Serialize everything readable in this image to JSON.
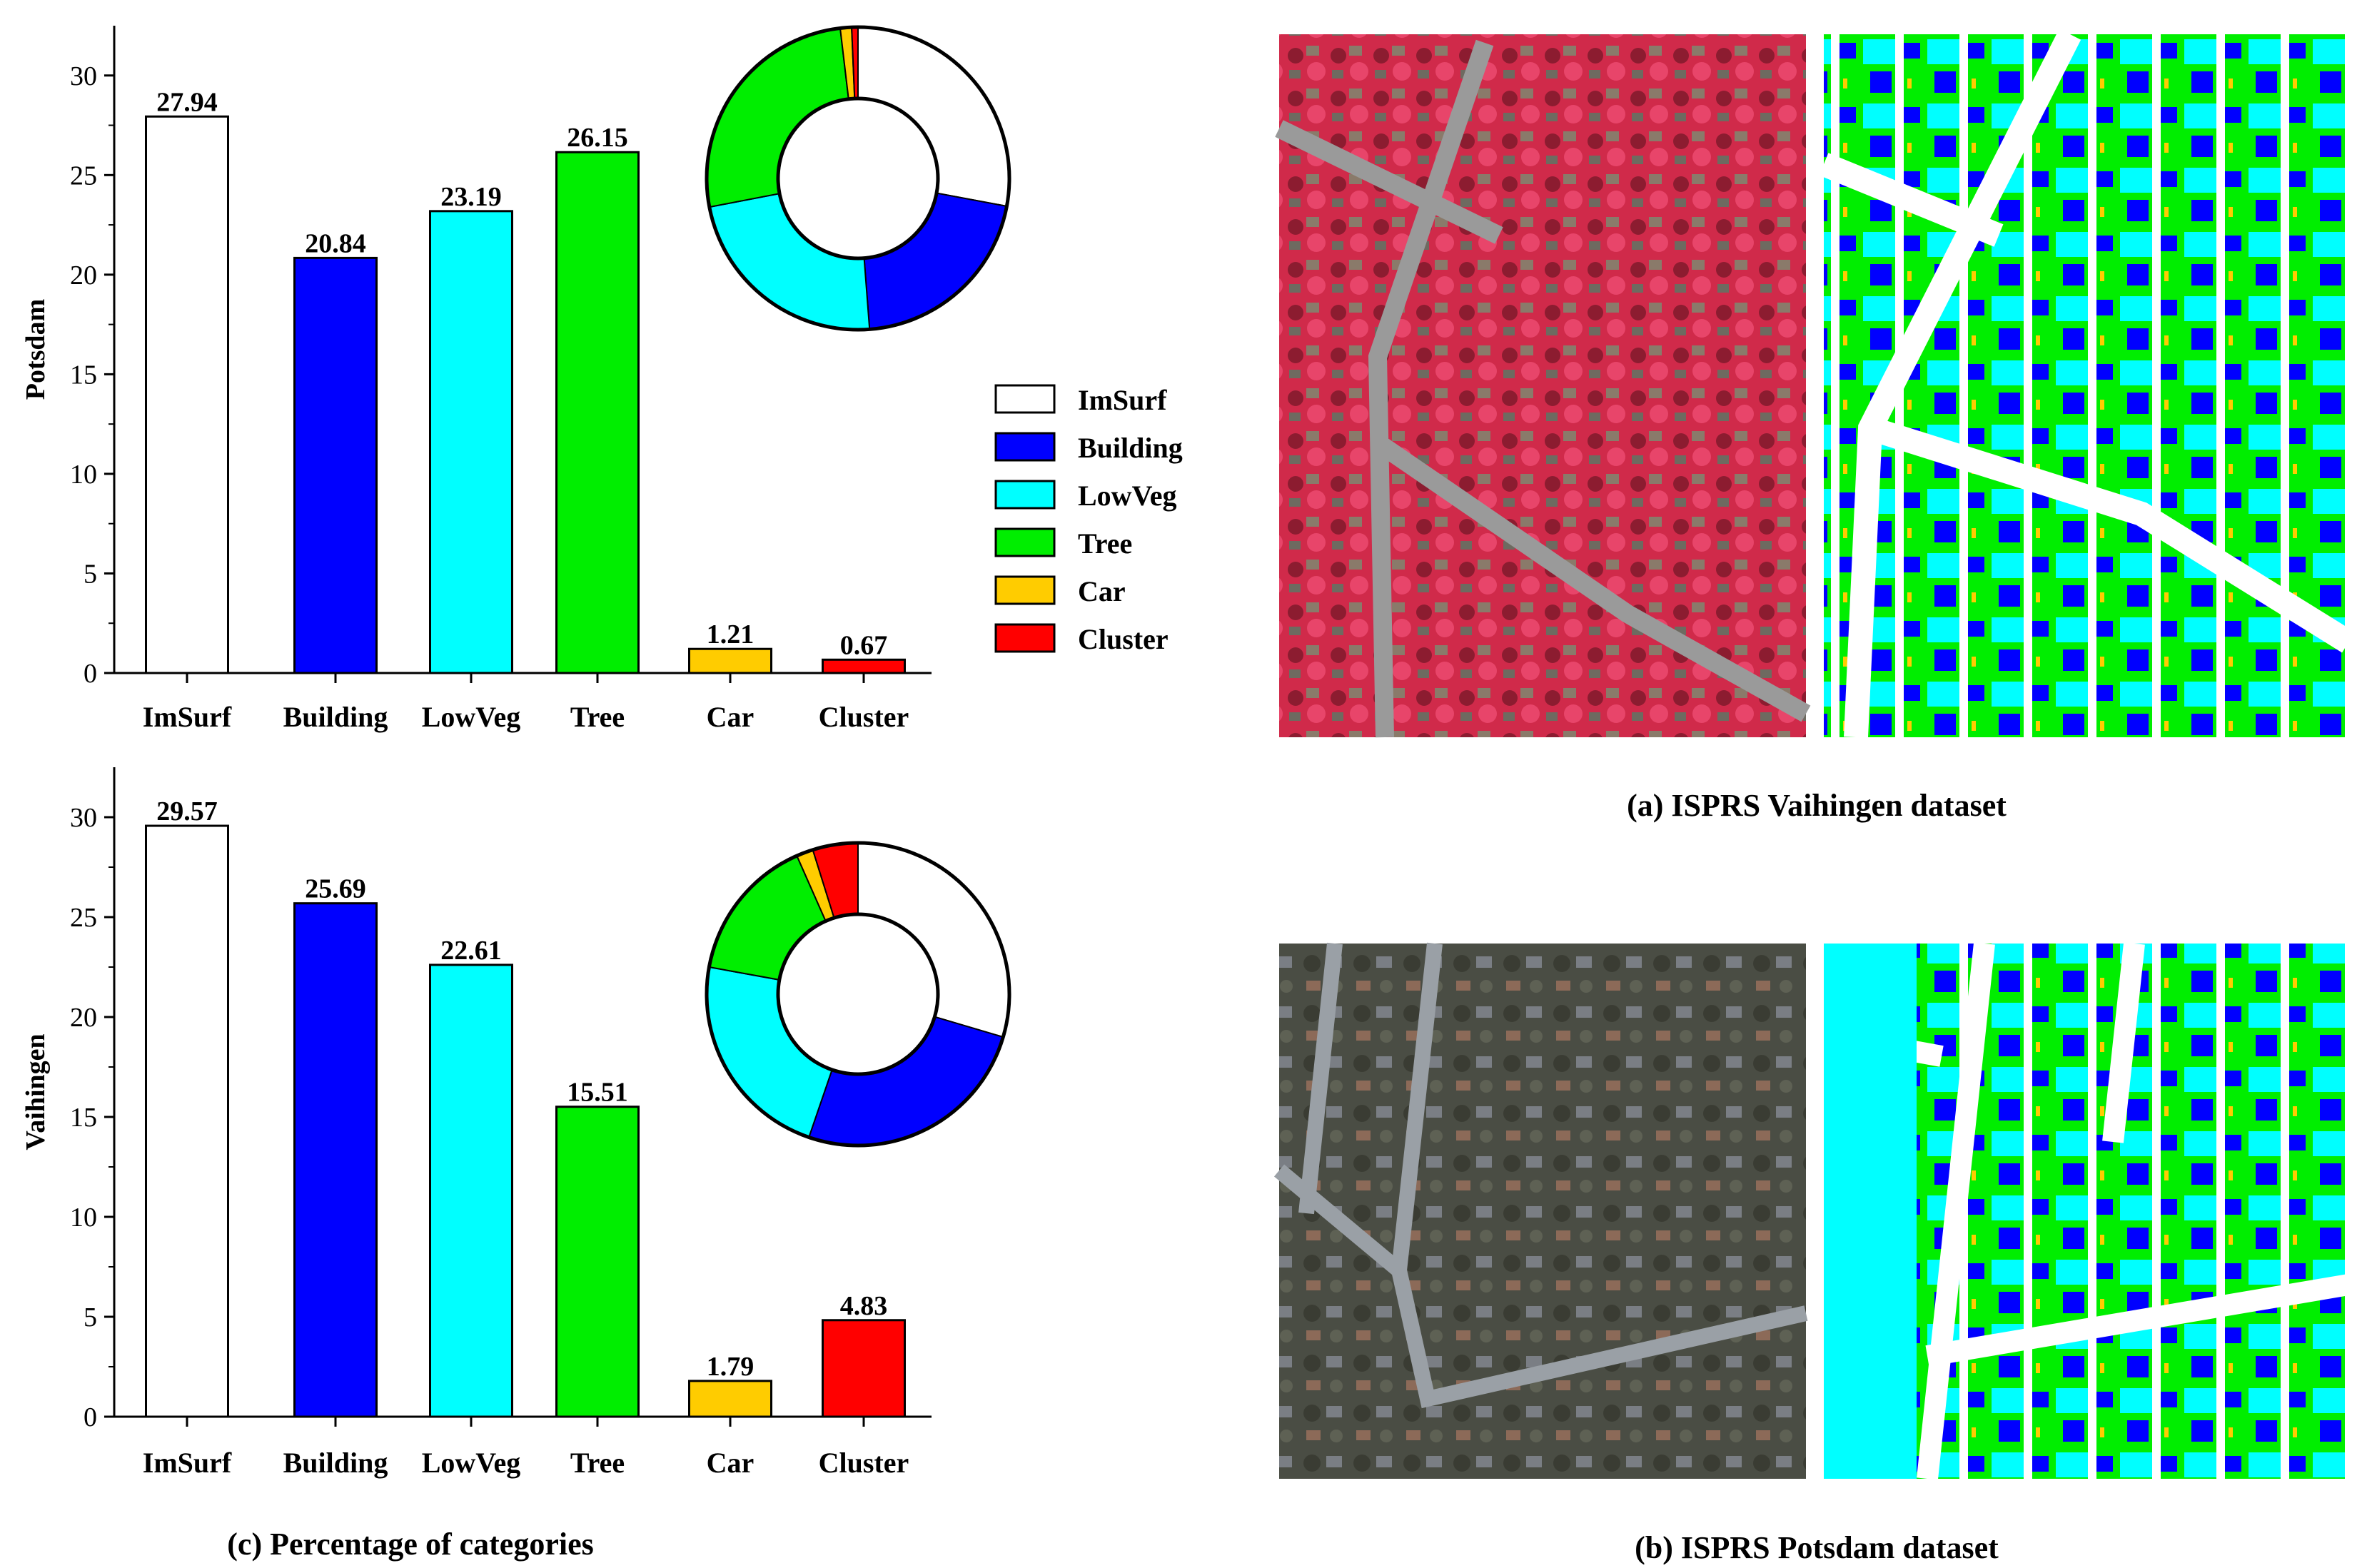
{
  "colors": {
    "ImSurf": "#ffffff",
    "Building": "#0000ff",
    "LowVeg": "#00ffff",
    "Tree": "#00ee00",
    "Car": "#ffcc00",
    "Cluster": "#ff0000"
  },
  "legend": [
    "ImSurf",
    "Building",
    "LowVeg",
    "Tree",
    "Car",
    "Cluster"
  ],
  "captions": {
    "vaihingen": "(a) ISPRS Vaihingen dataset",
    "potsdam": "(b) ISPRS Potsdam dataset",
    "percentage": "(c) Percentage of categories"
  },
  "chart_data": [
    {
      "type": "bar",
      "title": "",
      "xlabel": "",
      "ylabel": "Potsdam",
      "categories": [
        "ImSurf",
        "Building",
        "LowVeg",
        "Tree",
        "Car",
        "Cluster"
      ],
      "values": [
        27.94,
        20.84,
        23.19,
        26.15,
        1.21,
        0.67
      ],
      "value_labels": [
        "27.94",
        "20.84",
        "23.19",
        "26.15",
        "1.21",
        "0.67"
      ],
      "yticks": [
        0,
        5,
        10,
        15,
        20,
        25,
        30
      ],
      "ylim": [
        0,
        32.5
      ],
      "donut": true
    },
    {
      "type": "bar",
      "title": "",
      "xlabel": "",
      "ylabel": "Vaihingen",
      "categories": [
        "ImSurf",
        "Building",
        "LowVeg",
        "Tree",
        "Car",
        "Cluster"
      ],
      "values": [
        29.57,
        25.69,
        22.61,
        15.51,
        1.79,
        4.83
      ],
      "value_labels": [
        "29.57",
        "25.69",
        "22.61",
        "15.51",
        "1.79",
        "4.83"
      ],
      "yticks": [
        0,
        5,
        10,
        15,
        20,
        25,
        30
      ],
      "ylim": [
        0,
        32.5
      ],
      "donut": true
    }
  ]
}
